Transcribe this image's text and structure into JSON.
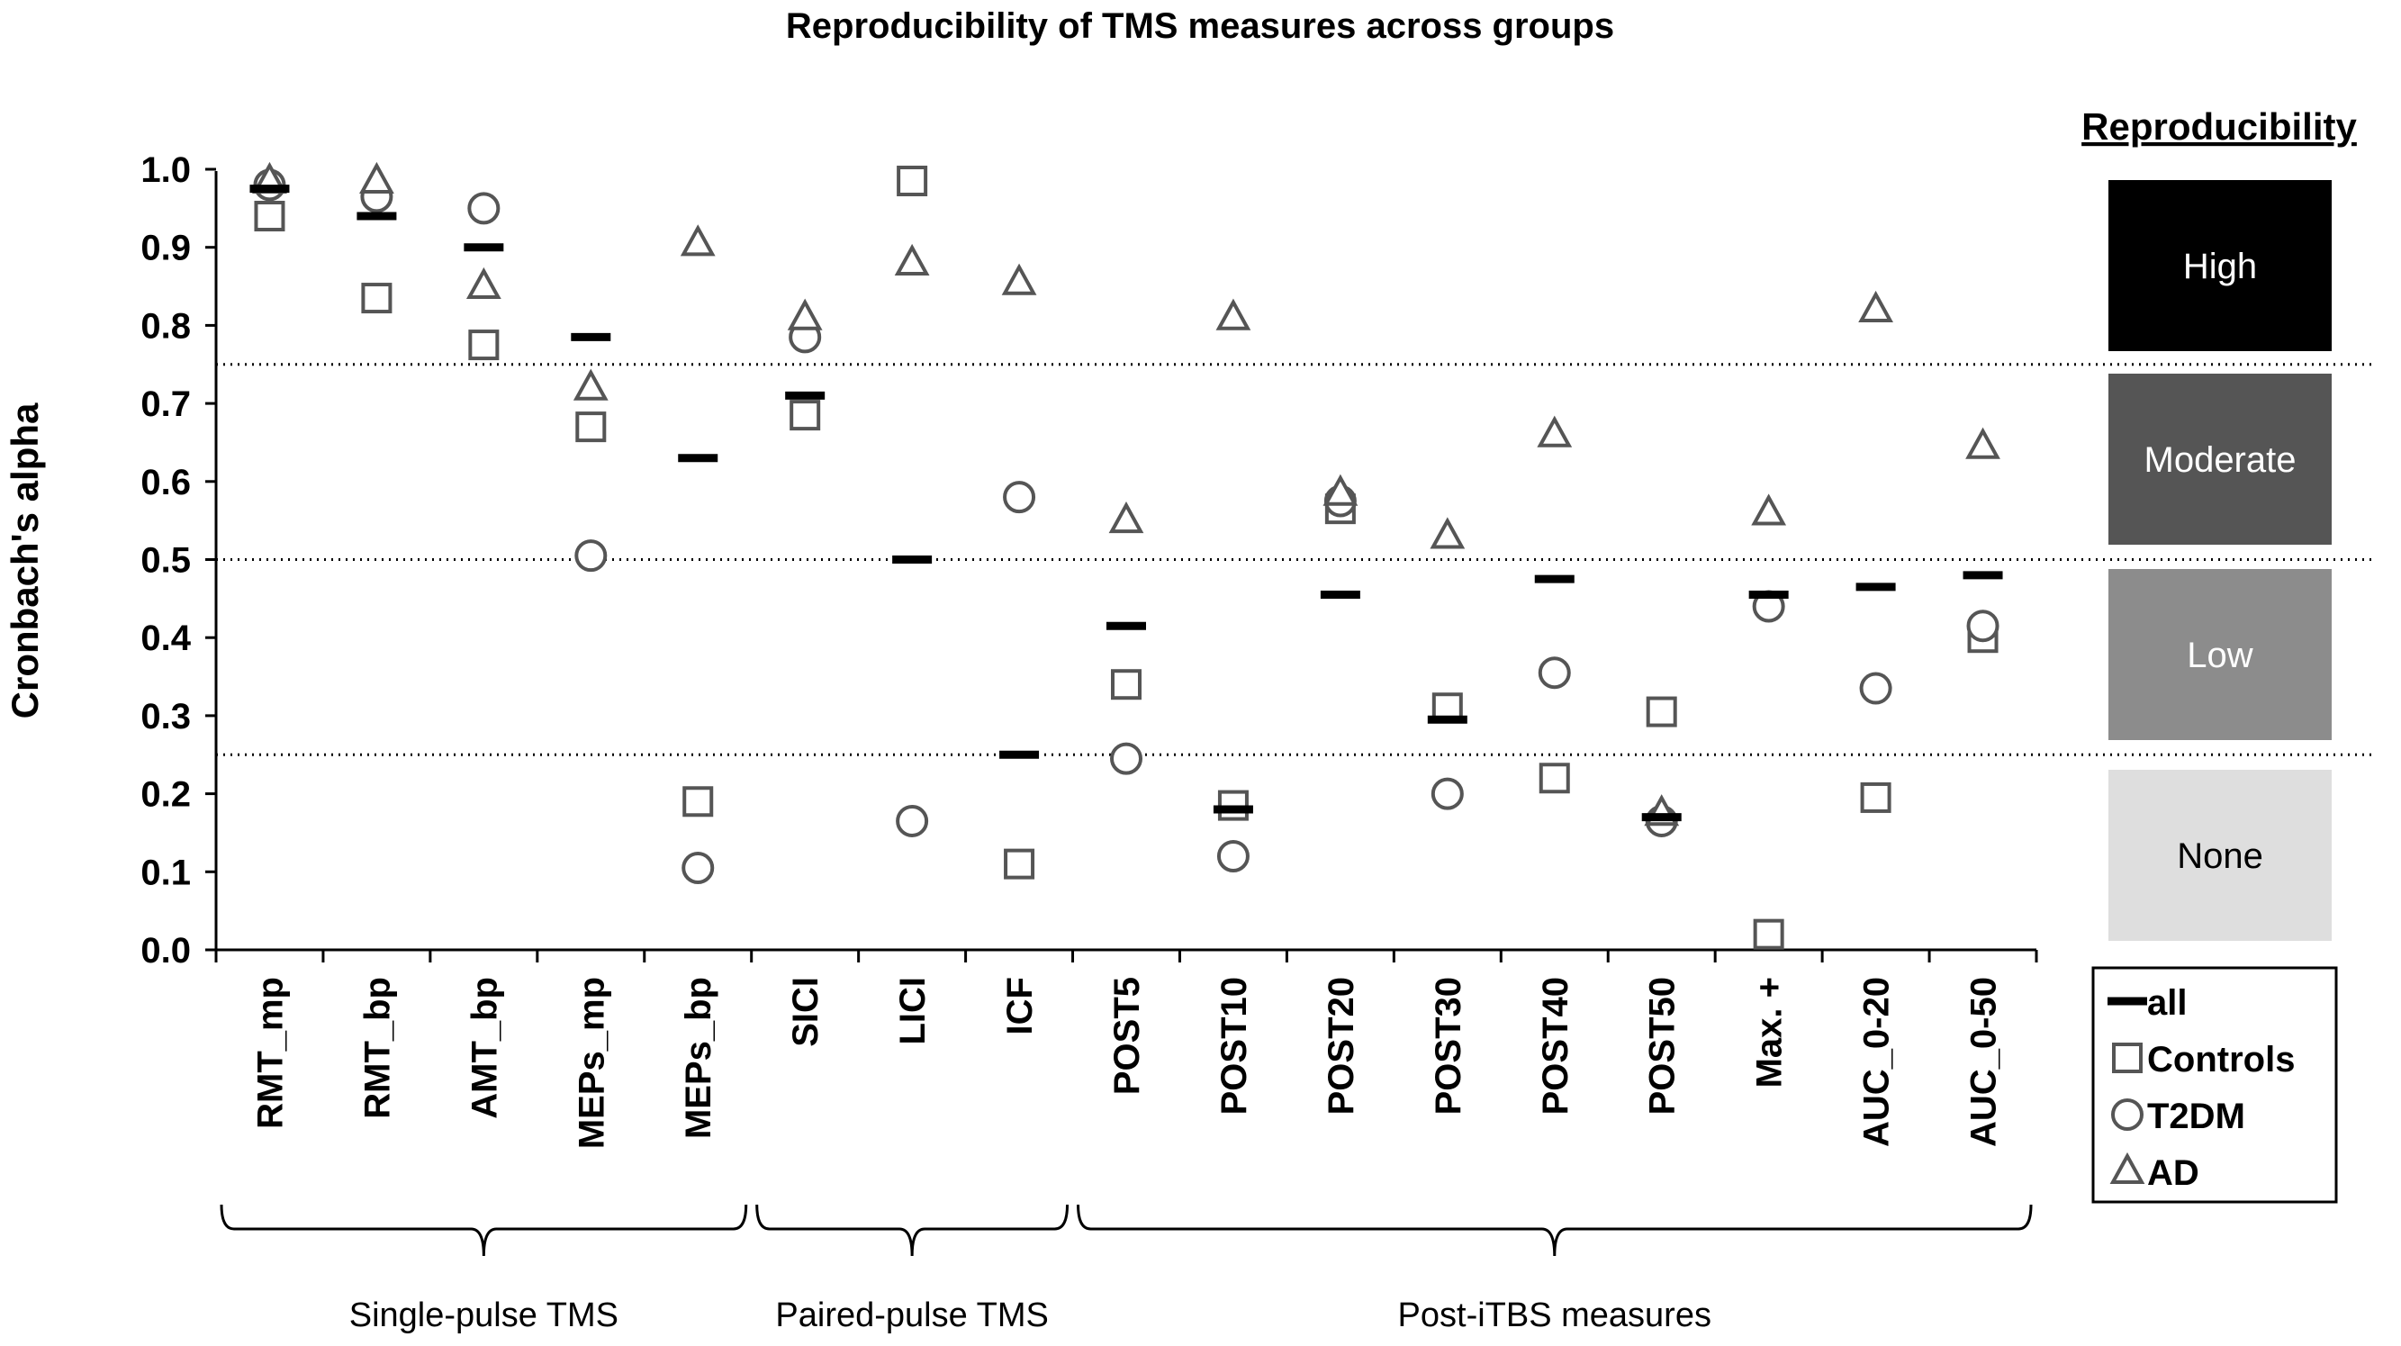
{
  "chart_data": {
    "type": "scatter",
    "title": "Reproducibility of TMS measures across groups",
    "ylabel": "Cronbach's alpha",
    "ylim": [
      0,
      1
    ],
    "yticks": [
      "0.0",
      "0.1",
      "0.2",
      "0.3",
      "0.4",
      "0.5",
      "0.6",
      "0.7",
      "0.8",
      "0.9",
      "1.0"
    ],
    "thresholds": [
      0.25,
      0.5,
      0.75
    ],
    "categories": [
      "RMT_mp",
      "RMT_bp",
      "AMT_bp",
      "MEPs_mp",
      "MEPs_bp",
      "SICI",
      "LICI",
      "ICF",
      "POST5",
      "POST10",
      "POST20",
      "POST30",
      "POST40",
      "POST50",
      "Max. +",
      "AUC_0-20",
      "AUC_0-50"
    ],
    "series": [
      {
        "name": "all",
        "marker": "dash",
        "values": [
          0.975,
          0.94,
          0.9,
          0.785,
          0.63,
          0.71,
          0.5,
          0.25,
          0.415,
          0.18,
          0.455,
          0.295,
          0.475,
          0.17,
          0.455,
          0.465,
          0.48
        ]
      },
      {
        "name": "Controls",
        "marker": "square",
        "values": [
          0.94,
          0.835,
          0.775,
          0.67,
          0.19,
          0.685,
          0.985,
          0.11,
          0.34,
          0.185,
          0.565,
          0.31,
          0.22,
          0.305,
          0.02,
          0.195,
          0.4
        ]
      },
      {
        "name": "T2DM",
        "marker": "circle",
        "values": [
          0.98,
          0.965,
          0.95,
          0.505,
          0.105,
          0.785,
          0.165,
          0.58,
          0.245,
          0.12,
          0.575,
          0.2,
          0.355,
          0.165,
          0.44,
          0.335,
          0.415
        ]
      },
      {
        "name": "AD",
        "marker": "triangle",
        "values": [
          0.985,
          0.985,
          0.85,
          0.72,
          0.905,
          0.81,
          0.88,
          0.855,
          0.55,
          0.81,
          0.585,
          0.53,
          0.66,
          0.175,
          0.56,
          0.82,
          0.645
        ]
      }
    ],
    "groups": [
      {
        "label": "Single-pulse TMS",
        "start": 0,
        "end": 4
      },
      {
        "label": "Paired-pulse TMS",
        "start": 5,
        "end": 7
      },
      {
        "label": "Post-iTBS measures",
        "start": 8,
        "end": 16
      }
    ],
    "reproducibility": {
      "title": "Reproducibility",
      "bands": [
        {
          "label": "High",
          "color": "#000000",
          "text_color": "#ffffff"
        },
        {
          "label": "Moderate",
          "color": "#555555",
          "text_color": "#ffffff"
        },
        {
          "label": "Low",
          "color": "#8c8c8c",
          "text_color": "#ffffff"
        },
        {
          "label": "None",
          "color": "#dedede",
          "text_color": "#000000"
        }
      ]
    },
    "legend": {
      "position": "right",
      "entries": [
        {
          "label": "all",
          "marker": "dash"
        },
        {
          "label": "Controls",
          "marker": "square"
        },
        {
          "label": "T2DM",
          "marker": "circle"
        },
        {
          "label": "AD",
          "marker": "triangle"
        }
      ]
    }
  }
}
